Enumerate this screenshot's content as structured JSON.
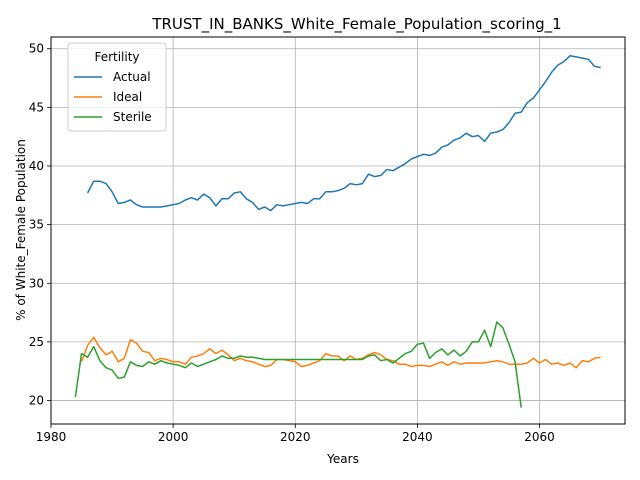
{
  "chart_data": {
    "type": "line",
    "title": "TRUST_IN_BANKS_White_Female_Population_scoring_1",
    "xlabel": "Years",
    "ylabel": "% of White_Female Population",
    "xlim": [
      1980,
      2074
    ],
    "ylim": [
      18,
      51
    ],
    "x_ticks": [
      1980,
      2000,
      2020,
      2040,
      2060
    ],
    "y_ticks": [
      20,
      25,
      30,
      35,
      40,
      45,
      50
    ],
    "grid": true,
    "legend": {
      "title": "Fertility",
      "position": "top-left"
    },
    "series": [
      {
        "name": "Actual",
        "color": "#1f77b4",
        "x": [
          1986,
          1987,
          1988,
          1989,
          1990,
          1991,
          1992,
          1993,
          1994,
          1995,
          1996,
          1997,
          1998,
          1999,
          2000,
          2001,
          2002,
          2003,
          2004,
          2005,
          2006,
          2007,
          2008,
          2009,
          2010,
          2011,
          2012,
          2013,
          2014,
          2015,
          2016,
          2017,
          2018,
          2019,
          2020,
          2021,
          2022,
          2023,
          2024,
          2025,
          2026,
          2027,
          2028,
          2029,
          2030,
          2031,
          2032,
          2033,
          2034,
          2035,
          2036,
          2037,
          2038,
          2039,
          2040,
          2041,
          2042,
          2043,
          2044,
          2045,
          2046,
          2047,
          2048,
          2049,
          2050,
          2051,
          2052,
          2053,
          2054,
          2055,
          2056,
          2057,
          2058,
          2059,
          2060,
          2061,
          2062,
          2063,
          2064,
          2065,
          2066,
          2067,
          2068,
          2069,
          2070
        ],
        "y": [
          37.7,
          38.7,
          38.7,
          38.5,
          37.8,
          36.8,
          36.9,
          37.1,
          36.7,
          36.5,
          36.5,
          36.5,
          36.5,
          36.6,
          36.7,
          36.8,
          37.1,
          37.3,
          37.1,
          37.6,
          37.3,
          36.6,
          37.2,
          37.2,
          37.7,
          37.8,
          37.2,
          36.9,
          36.3,
          36.5,
          36.2,
          36.7,
          36.6,
          36.7,
          36.8,
          36.9,
          36.8,
          37.2,
          37.2,
          37.8,
          37.8,
          37.9,
          38.1,
          38.5,
          38.4,
          38.5,
          39.3,
          39.1,
          39.2,
          39.7,
          39.6,
          39.9,
          40.2,
          40.6,
          40.8,
          41.0,
          40.9,
          41.1,
          41.6,
          41.8,
          42.2,
          42.4,
          42.8,
          42.5,
          42.6,
          42.1,
          42.8,
          42.9,
          43.1,
          43.7,
          44.5,
          44.6,
          45.4,
          45.8,
          46.5,
          47.2,
          48.0,
          48.6,
          48.9,
          49.4,
          49.3,
          49.2,
          49.1,
          48.5,
          48.4
        ]
      },
      {
        "name": "Ideal",
        "color": "#ff7f0e",
        "x": [
          1985,
          1986,
          1987,
          1988,
          1989,
          1990,
          1991,
          1992,
          1993,
          1994,
          1995,
          1996,
          1997,
          1998,
          1999,
          2000,
          2001,
          2002,
          2003,
          2004,
          2005,
          2006,
          2007,
          2008,
          2009,
          2010,
          2011,
          2012,
          2013,
          2014,
          2015,
          2016,
          2017,
          2018,
          2019,
          2020,
          2021,
          2022,
          2023,
          2024,
          2025,
          2026,
          2027,
          2028,
          2029,
          2030,
          2031,
          2032,
          2033,
          2034,
          2035,
          2036,
          2037,
          2038,
          2039,
          2040,
          2041,
          2042,
          2043,
          2044,
          2045,
          2046,
          2047,
          2048,
          2049,
          2050,
          2051,
          2052,
          2053,
          2054,
          2055,
          2056,
          2057,
          2058,
          2059,
          2060,
          2061,
          2062,
          2063,
          2064,
          2065,
          2066,
          2067,
          2068,
          2069,
          2070
        ],
        "y": [
          23.3,
          24.7,
          25.4,
          24.5,
          23.9,
          24.2,
          23.3,
          23.6,
          25.2,
          24.9,
          24.2,
          24.1,
          23.4,
          23.6,
          23.5,
          23.3,
          23.3,
          23.1,
          23.7,
          23.8,
          24.0,
          24.4,
          24.0,
          24.3,
          23.9,
          23.4,
          23.6,
          23.4,
          23.3,
          23.1,
          22.9,
          23.0,
          23.5,
          23.5,
          23.4,
          23.3,
          22.9,
          23.0,
          23.2,
          23.4,
          24.0,
          23.8,
          23.8,
          23.4,
          23.8,
          23.5,
          23.6,
          23.9,
          24.1,
          23.9,
          23.5,
          23.4,
          23.1,
          23.1,
          22.9,
          23.0,
          23.0,
          22.9,
          23.1,
          23.3,
          23.0,
          23.3,
          23.1,
          23.2,
          23.2,
          23.2,
          23.2,
          23.3,
          23.4,
          23.3,
          23.1,
          23.1,
          23.1,
          23.2,
          23.6,
          23.2,
          23.5,
          23.1,
          23.2,
          23.0,
          23.2,
          22.8,
          23.4,
          23.3,
          23.6,
          23.7
        ]
      },
      {
        "name": "Sterile",
        "color": "#2ca02c",
        "x": [
          1984,
          1985,
          1986,
          1987,
          1988,
          1989,
          1990,
          1991,
          1992,
          1993,
          1994,
          1995,
          1996,
          1997,
          1998,
          1999,
          2000,
          2001,
          2002,
          2003,
          2004,
          2005,
          2006,
          2007,
          2008,
          2009,
          2010,
          2011,
          2012,
          2013,
          2014,
          2015,
          2016,
          2017,
          2018,
          2019,
          2020,
          2021,
          2022,
          2023,
          2024,
          2025,
          2026,
          2027,
          2028,
          2029,
          2030,
          2031,
          2032,
          2033,
          2034,
          2035,
          2036,
          2037,
          2038,
          2039,
          2040,
          2041,
          2042,
          2043,
          2044,
          2045,
          2046,
          2047,
          2048,
          2049,
          2050,
          2051,
          2052,
          2053,
          2054,
          2055,
          2056,
          2057
        ],
        "y": [
          20.3,
          24.0,
          23.7,
          24.6,
          23.4,
          22.8,
          22.6,
          21.9,
          22.0,
          23.3,
          23.0,
          22.9,
          23.3,
          23.1,
          23.4,
          23.2,
          23.1,
          23.0,
          22.8,
          23.2,
          22.9,
          23.1,
          23.3,
          23.5,
          23.8,
          23.6,
          23.6,
          23.8,
          23.7,
          23.7,
          23.6,
          23.5,
          23.5,
          23.5,
          23.5,
          23.5,
          23.5,
          23.5,
          23.5,
          23.5,
          23.5,
          23.5,
          23.5,
          23.5,
          23.5,
          23.5,
          23.5,
          23.5,
          23.8,
          23.9,
          23.4,
          23.5,
          23.2,
          23.6,
          24.0,
          24.2,
          24.8,
          24.9,
          23.6,
          24.1,
          24.4,
          23.9,
          24.3,
          23.8,
          24.2,
          25.0,
          25.0,
          26.0,
          24.6,
          26.7,
          26.2,
          24.8,
          23.3,
          19.4
        ]
      }
    ]
  }
}
